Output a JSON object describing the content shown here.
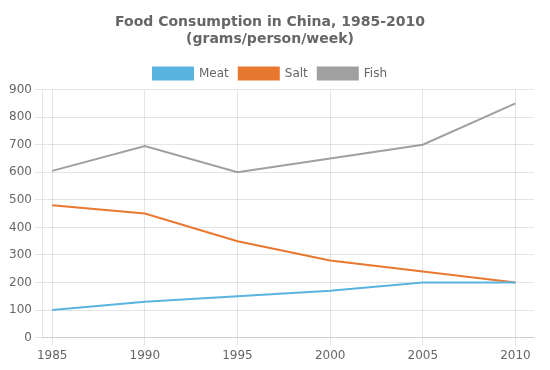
{
  "chart_data": {
    "type": "line",
    "title": "Food Consumption in China, 1985-2010\n(grams/person/week)",
    "x": [
      1985,
      1990,
      1995,
      2000,
      2005,
      2010
    ],
    "series": [
      {
        "name": "Meat",
        "color": "#5ab4e0",
        "values": [
          100,
          130,
          150,
          170,
          200,
          200
        ]
      },
      {
        "name": "Salt",
        "color": "#e87830",
        "values": [
          480,
          450,
          350,
          280,
          240,
          200
        ]
      },
      {
        "name": "Fish",
        "color": "#a0a0a0",
        "values": [
          605,
          695,
          600,
          650,
          700,
          850
        ]
      }
    ],
    "xlim": [
      1984.5,
      2011
    ],
    "xticks": [
      1985,
      1990,
      1995,
      2000,
      2005,
      2010
    ],
    "ylim": [
      0,
      900
    ],
    "yticks": [
      0,
      100,
      200,
      300,
      400,
      500,
      600,
      700,
      800,
      900
    ],
    "grid": true,
    "legend": "top"
  }
}
